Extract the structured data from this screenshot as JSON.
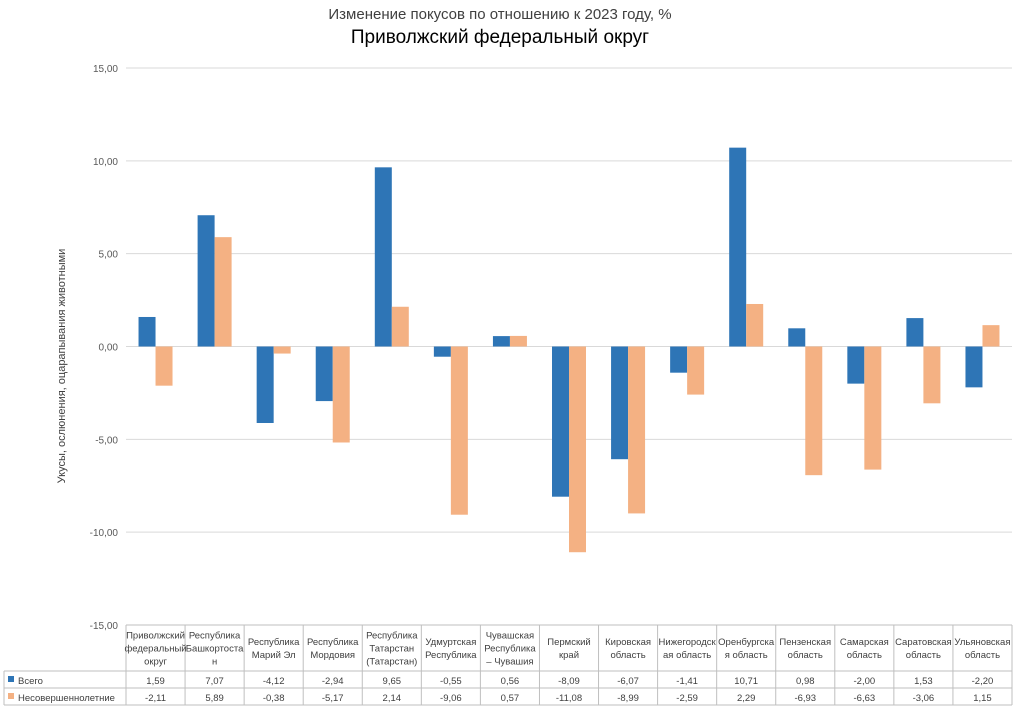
{
  "chart_data": {
    "type": "bar",
    "subtitle": "Изменение покусов по отношению к 2023 году, %",
    "title": "Приволжский федеральный округ",
    "ylabel": "Укусы, ослюнения, оцарапывания животными",
    "ylim": [
      -15,
      15
    ],
    "yticks": [
      "15,00",
      "10,00",
      "5,00",
      "0,00",
      "-5,00",
      "-10,00",
      "-15,00"
    ],
    "ytick_values": [
      15,
      10,
      5,
      0,
      -5,
      -10,
      -15
    ],
    "grid": true,
    "legend": "bottom-table",
    "categories": [
      "Приволжский федеральный округ",
      "Республика Башкортостан",
      "Республика Марий Эл",
      "Республика Мордовия",
      "Республика Татарстан (Татарстан)",
      "Удмуртская Республика",
      "Чувашская Республика – Чувашия",
      "Пермский край",
      "Кировская область",
      "Нижегородская область",
      "Оренбургская область",
      "Пензенская область",
      "Самарская область",
      "Саратовская область",
      "Ульяновская область"
    ],
    "series": [
      {
        "name": "Всего",
        "color": "#2E75B6",
        "values": [
          1.59,
          7.07,
          -4.12,
          -2.94,
          9.65,
          -0.55,
          0.56,
          -8.09,
          -6.07,
          -1.41,
          10.71,
          0.98,
          -2.0,
          1.53,
          -2.2
        ],
        "labels": [
          "1,59",
          "7,07",
          "-4,12",
          "-2,94",
          "9,65",
          "-0,55",
          "0,56",
          "-8,09",
          "-6,07",
          "-1,41",
          "10,71",
          "0,98",
          "-2,00",
          "1,53",
          "-2,20"
        ]
      },
      {
        "name": "Несовершеннолетние",
        "color": "#F4B183",
        "values": [
          -2.11,
          5.89,
          -0.38,
          -5.17,
          2.14,
          -9.06,
          0.57,
          -11.08,
          -8.99,
          -2.59,
          2.29,
          -6.93,
          -6.63,
          -3.06,
          1.15
        ],
        "labels": [
          "-2,11",
          "5,89",
          "-0,38",
          "-5,17",
          "2,14",
          "-9,06",
          "0,57",
          "-11,08",
          "-8,99",
          "-2,59",
          "2,29",
          "-6,93",
          "-6,63",
          "-3,06",
          "1,15"
        ]
      }
    ]
  }
}
